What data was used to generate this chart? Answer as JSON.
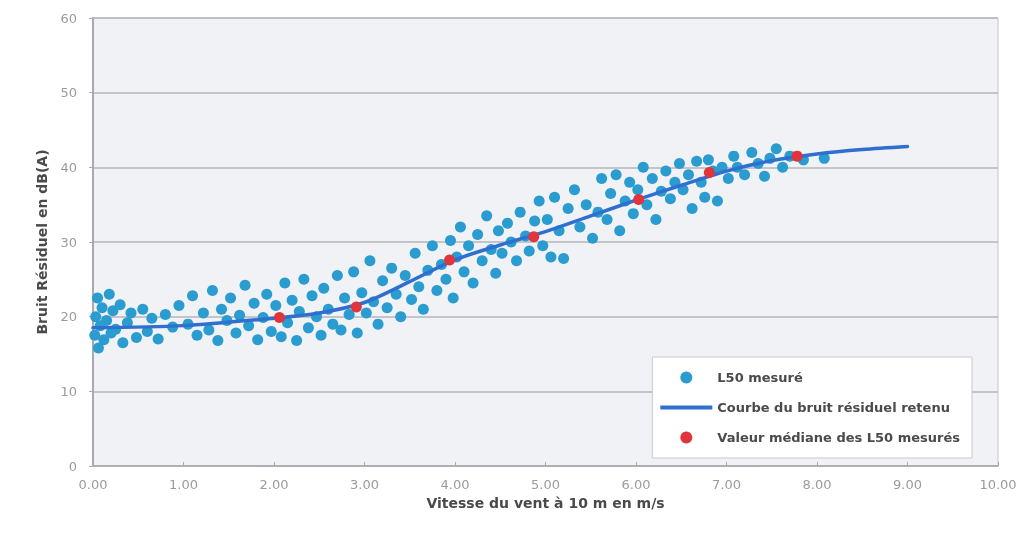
{
  "chart_data": {
    "type": "scatter",
    "xlabel": "Vitesse du vent à 10 m en m/s",
    "ylabel": "Bruit Résiduel en dB(A)",
    "xlim": [
      0,
      10
    ],
    "xticks": [
      {
        "value": 0,
        "label": "0.00"
      },
      {
        "value": 1,
        "label": "1.00"
      },
      {
        "value": 2,
        "label": "2.00"
      },
      {
        "value": 3,
        "label": "3.00"
      },
      {
        "value": 4,
        "label": "4.00"
      },
      {
        "value": 5,
        "label": "5.00"
      },
      {
        "value": 6,
        "label": "6.00"
      },
      {
        "value": 7,
        "label": "7.00"
      },
      {
        "value": 8,
        "label": "8.00"
      },
      {
        "value": 9,
        "label": "9.00"
      },
      {
        "value": 10,
        "label": "10.00"
      }
    ],
    "ylim": [
      0,
      60
    ],
    "yticks": [
      0,
      10,
      20,
      30,
      40,
      50,
      60
    ],
    "grid": "y",
    "legend": "bottom right",
    "marker": "circle",
    "series": [
      {
        "name": "L50 mesuré",
        "color": "#2a9cd0",
        "x": [
          0.02,
          0.03,
          0.05,
          0.06,
          0.08,
          0.1,
          0.12,
          0.15,
          0.18,
          0.2,
          0.22,
          0.25,
          0.3,
          0.33,
          0.38,
          0.42,
          0.48,
          0.55,
          0.6,
          0.65,
          0.72,
          0.8,
          0.88,
          0.95,
          1.05,
          1.1,
          1.15,
          1.22,
          1.28,
          1.32,
          1.38,
          1.42,
          1.48,
          1.52,
          1.58,
          1.62,
          1.68,
          1.72,
          1.78,
          1.82,
          1.88,
          1.92,
          1.97,
          2.02,
          2.08,
          2.12,
          2.15,
          2.2,
          2.25,
          2.28,
          2.33,
          2.38,
          2.42,
          2.47,
          2.52,
          2.55,
          2.6,
          2.65,
          2.7,
          2.74,
          2.78,
          2.83,
          2.88,
          2.92,
          2.97,
          3.02,
          3.06,
          3.1,
          3.15,
          3.2,
          3.25,
          3.3,
          3.35,
          3.4,
          3.45,
          3.52,
          3.56,
          3.6,
          3.65,
          3.7,
          3.75,
          3.8,
          3.85,
          3.9,
          3.95,
          3.98,
          4.02,
          4.06,
          4.1,
          4.15,
          4.2,
          4.25,
          4.3,
          4.35,
          4.4,
          4.45,
          4.48,
          4.52,
          4.58,
          4.62,
          4.68,
          4.72,
          4.78,
          4.82,
          4.88,
          4.93,
          4.97,
          5.02,
          5.06,
          5.1,
          5.15,
          5.2,
          5.25,
          5.32,
          5.38,
          5.45,
          5.52,
          5.58,
          5.62,
          5.68,
          5.72,
          5.78,
          5.82,
          5.88,
          5.93,
          5.97,
          6.02,
          6.08,
          6.12,
          6.18,
          6.22,
          6.28,
          6.33,
          6.38,
          6.43,
          6.48,
          6.52,
          6.58,
          6.62,
          6.67,
          6.72,
          6.76,
          6.8,
          6.85,
          6.9,
          6.95,
          7.02,
          7.08,
          7.12,
          7.2,
          7.28,
          7.35,
          7.42,
          7.48,
          7.55,
          7.62,
          7.7,
          7.85,
          8.08
        ],
        "values": [
          17.5,
          20.0,
          22.5,
          15.8,
          18.8,
          21.2,
          16.9,
          19.5,
          23.0,
          17.8,
          20.8,
          18.3,
          21.6,
          16.5,
          19.2,
          20.5,
          17.2,
          21.0,
          18.0,
          19.8,
          17.0,
          20.3,
          18.6,
          21.5,
          19.0,
          22.8,
          17.5,
          20.5,
          18.2,
          23.5,
          16.8,
          21.0,
          19.5,
          22.5,
          17.8,
          20.2,
          24.2,
          18.8,
          21.8,
          16.9,
          19.9,
          23.0,
          18.0,
          21.5,
          17.3,
          24.5,
          19.2,
          22.2,
          16.8,
          20.7,
          25.0,
          18.5,
          22.8,
          20.0,
          17.5,
          23.8,
          21.0,
          19.0,
          25.5,
          18.2,
          22.5,
          20.3,
          26.0,
          17.8,
          23.2,
          20.5,
          27.5,
          22.0,
          19.0,
          24.8,
          21.2,
          26.5,
          23.0,
          20.0,
          25.5,
          22.3,
          28.5,
          24.0,
          21.0,
          26.2,
          29.5,
          23.5,
          27.0,
          25.0,
          30.2,
          22.5,
          28.0,
          32.0,
          26.0,
          29.5,
          24.5,
          31.0,
          27.5,
          33.5,
          29.0,
          25.8,
          31.5,
          28.5,
          32.5,
          30.0,
          27.5,
          34.0,
          30.8,
          28.8,
          32.8,
          35.5,
          29.5,
          33.0,
          28.0,
          36.0,
          31.5,
          27.8,
          34.5,
          37.0,
          32.0,
          35.0,
          30.5,
          34.0,
          38.5,
          33.0,
          36.5,
          39.0,
          31.5,
          35.5,
          38.0,
          33.8,
          37.0,
          40.0,
          35.0,
          38.5,
          33.0,
          36.8,
          39.5,
          35.8,
          38.0,
          40.5,
          37.0,
          39.0,
          34.5,
          40.8,
          38.0,
          36.0,
          41.0,
          39.5,
          35.5,
          40.0,
          38.5,
          41.5,
          40.0,
          39.0,
          42.0,
          40.5,
          38.8,
          41.2,
          42.5,
          40.0,
          41.5,
          41.0,
          41.2
        ]
      },
      {
        "name": "Courbe du bruit résiduel retenu",
        "type": "line",
        "marker": "none",
        "color": "#2e6fd0",
        "x": [
          0,
          1,
          2,
          2.5,
          3,
          3.5,
          4,
          4.5,
          5,
          5.5,
          6,
          6.5,
          7,
          7.5,
          8,
          8.5,
          9
        ],
        "values": [
          18.5,
          18.8,
          19.8,
          20.5,
          21.9,
          24.7,
          27.6,
          29.6,
          31.4,
          33.5,
          35.6,
          37.6,
          39.5,
          40.9,
          41.8,
          42.4,
          42.8
        ]
      },
      {
        "name": "Valeur médiane des L50 mesurés",
        "color": "#e0353c",
        "x": [
          2.06,
          2.91,
          3.94,
          4.87,
          6.03,
          6.81,
          7.78
        ],
        "values": [
          19.9,
          21.3,
          27.6,
          30.7,
          35.7,
          39.3,
          41.5
        ]
      }
    ]
  }
}
